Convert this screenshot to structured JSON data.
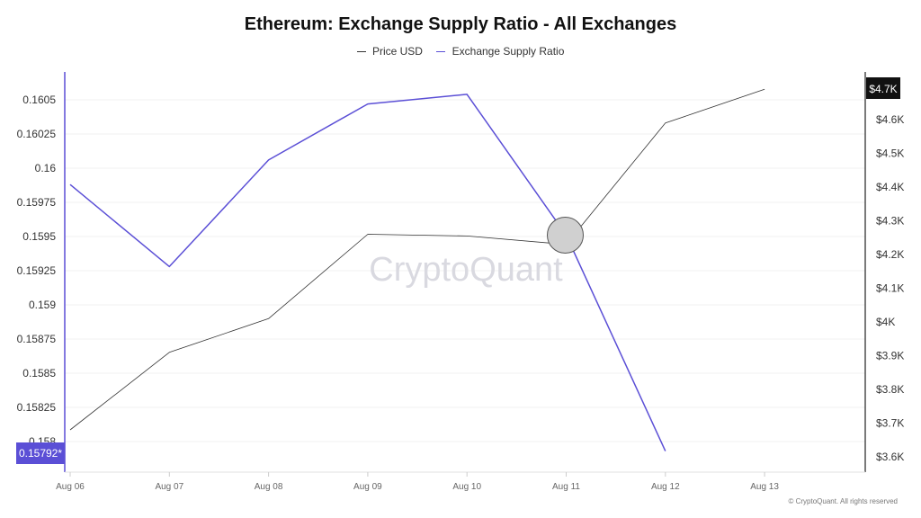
{
  "colors": {
    "price": "#333333",
    "ratio": "#5b4fd6",
    "left_badge": "#5b4fd6",
    "right_badge": "#111111",
    "grid": "#f0f0f0"
  },
  "watermark": "CryptoQuant",
  "copyright": "© CryptoQuant. All rights reserved",
  "chart_data": {
    "type": "line",
    "title": "Ethereum: Exchange Supply Ratio - All Exchanges",
    "legend_position": "top-center",
    "grid": true,
    "categories": [
      "Aug 06",
      "Aug 07",
      "Aug 08",
      "Aug 09",
      "Aug 10",
      "Aug 11",
      "Aug 12",
      "Aug 13"
    ],
    "series": [
      {
        "name": "Price USD",
        "axis": "right",
        "values": [
          3680,
          3910,
          4010,
          4260,
          4255,
          4230,
          4590,
          4690
        ]
      },
      {
        "name": "Exchange Supply Ratio",
        "axis": "left",
        "values": [
          0.15988,
          0.15928,
          0.16006,
          0.16047,
          0.16054,
          0.15951,
          0.15793,
          null
        ]
      }
    ],
    "y_left": {
      "ticks": [
        "0.158",
        "0.15825",
        "0.1585",
        "0.15875",
        "0.159",
        "0.15925",
        "0.1595",
        "0.15975",
        "0.16",
        "0.16025",
        "0.1605"
      ],
      "ylim": [
        0.15786,
        0.16057
      ]
    },
    "y_right": {
      "ticks": [
        "$3.6K",
        "$3.7K",
        "$3.8K",
        "$3.9K",
        "$4K",
        "$4.1K",
        "$4.2K",
        "$4.3K",
        "$4.4K",
        "$4.5K",
        "$4.6K"
      ],
      "ylim": [
        3600,
        4700
      ]
    },
    "current_values": {
      "left": "0.15792*",
      "right": "$4.7K"
    },
    "highlight": {
      "category": "Aug 11",
      "series": "Exchange Supply Ratio"
    }
  }
}
